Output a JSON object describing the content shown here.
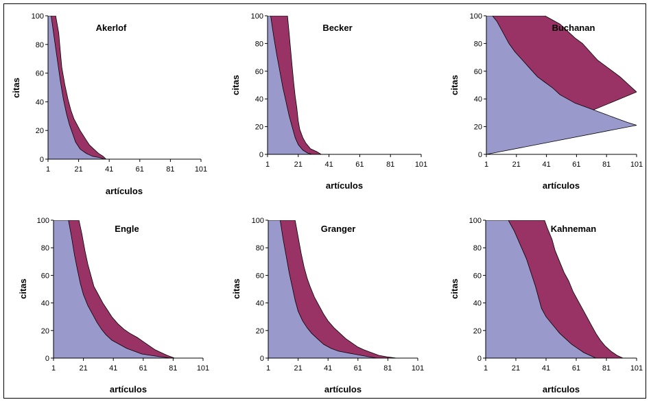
{
  "colors": {
    "lower": "#9999cc",
    "upper": "#993366",
    "edge": "#000000"
  },
  "chart_data": [
    {
      "type": "area",
      "title": "Akerlof",
      "xlabel": "artículos",
      "ylabel": "citas",
      "xlim": [
        1,
        101
      ],
      "ylim": [
        0,
        100
      ],
      "xticks": [
        "1",
        "21",
        "41",
        "61",
        "81",
        "101"
      ],
      "yticks": [
        "0",
        "20",
        "40",
        "60",
        "80",
        "100"
      ],
      "series": [
        {
          "key": "lower",
          "points": [
            [
              3,
              100
            ],
            [
              5,
              85
            ],
            [
              7,
              70
            ],
            [
              9,
              55
            ],
            [
              11,
              42
            ],
            [
              13,
              32
            ],
            [
              15,
              24
            ],
            [
              17,
              18
            ],
            [
              19,
              12
            ],
            [
              22,
              7
            ],
            [
              26,
              4
            ],
            [
              30,
              2
            ],
            [
              35,
              1
            ],
            [
              38,
              0
            ]
          ]
        },
        {
          "key": "upper",
          "points": [
            [
              6,
              100
            ],
            [
              8,
              88
            ],
            [
              9,
              76
            ],
            [
              10,
              64
            ],
            [
              12,
              52
            ],
            [
              14,
              42
            ],
            [
              16,
              34
            ],
            [
              18,
              28
            ],
            [
              20,
              24
            ],
            [
              22,
              20
            ],
            [
              25,
              15
            ],
            [
              28,
              10
            ],
            [
              31,
              7
            ],
            [
              34,
              4
            ],
            [
              37,
              2
            ],
            [
              39,
              0
            ]
          ]
        }
      ]
    },
    {
      "type": "area",
      "title": "Becker",
      "xlabel": "artículos",
      "ylabel": "citas",
      "xlim": [
        1,
        101
      ],
      "ylim": [
        0,
        100
      ],
      "xticks": [
        "1",
        "21",
        "41",
        "61",
        "81",
        "101"
      ],
      "yticks": [
        "0",
        "20",
        "40",
        "60",
        "80",
        "100"
      ],
      "series": [
        {
          "key": "lower",
          "points": [
            [
              3,
              100
            ],
            [
              5,
              85
            ],
            [
              7,
              72
            ],
            [
              9,
              60
            ],
            [
              11,
              48
            ],
            [
              13,
              38
            ],
            [
              15,
              28
            ],
            [
              17,
              20
            ],
            [
              19,
              12
            ],
            [
              21,
              7
            ],
            [
              24,
              3
            ],
            [
              27,
              1
            ],
            [
              30,
              0
            ]
          ]
        },
        {
          "key": "upper",
          "points": [
            [
              14,
              100
            ],
            [
              15,
              88
            ],
            [
              16,
              76
            ],
            [
              17,
              64
            ],
            [
              18,
              52
            ],
            [
              19,
              42
            ],
            [
              20,
              34
            ],
            [
              21,
              24
            ],
            [
              22,
              18
            ],
            [
              24,
              12
            ],
            [
              26,
              8
            ],
            [
              29,
              4
            ],
            [
              33,
              2
            ],
            [
              36,
              0
            ]
          ]
        }
      ]
    },
    {
      "type": "area",
      "title": "Buchanan",
      "xlabel": "artículos",
      "ylabel": "citas",
      "xlim": [
        1,
        101
      ],
      "ylim": [
        0,
        100
      ],
      "xticks": [
        "1",
        "21",
        "41",
        "61",
        "81",
        "101"
      ],
      "yticks": [
        "0",
        "20",
        "40",
        "60",
        "80",
        "100"
      ],
      "series": [
        {
          "key": "lower",
          "points": [
            [
              1,
              100
            ],
            [
              5,
              100
            ],
            [
              8,
              96
            ],
            [
              12,
              88
            ],
            [
              16,
              80
            ],
            [
              20,
              74
            ],
            [
              25,
              68
            ],
            [
              30,
              62
            ],
            [
              35,
              56
            ],
            [
              40,
              52
            ],
            [
              45,
              48
            ],
            [
              50,
              43
            ],
            [
              55,
              40
            ],
            [
              60,
              37
            ],
            [
              65,
              35
            ],
            [
              70,
              33
            ],
            [
              75,
              31
            ],
            [
              80,
              29
            ],
            [
              85,
              27
            ],
            [
              90,
              25
            ],
            [
              95,
              23
            ],
            [
              101,
              21
            ]
          ]
        },
        {
          "key": "upper",
          "points": [
            [
              12,
              100
            ],
            [
              20,
              100
            ],
            [
              30,
              100
            ],
            [
              40,
              100
            ],
            [
              50,
              94
            ],
            [
              60,
              84
            ],
            [
              65,
              80
            ],
            [
              70,
              74
            ],
            [
              75,
              68
            ],
            [
              80,
              64
            ],
            [
              85,
              60
            ],
            [
              90,
              56
            ],
            [
              95,
              51
            ],
            [
              101,
              45
            ]
          ]
        }
      ]
    },
    {
      "type": "area",
      "title": "Engle",
      "xlabel": "artículos",
      "ylabel": "citas",
      "xlim": [
        1,
        101
      ],
      "ylim": [
        0,
        100
      ],
      "xticks": [
        "1",
        "21",
        "41",
        "61",
        "81",
        "101"
      ],
      "yticks": [
        "0",
        "20",
        "40",
        "60",
        "80",
        "100"
      ],
      "series": [
        {
          "key": "lower",
          "points": [
            [
              11,
              100
            ],
            [
              13,
              88
            ],
            [
              15,
              75
            ],
            [
              17,
              64
            ],
            [
              19,
              54
            ],
            [
              21,
              46
            ],
            [
              24,
              38
            ],
            [
              27,
              32
            ],
            [
              30,
              26
            ],
            [
              33,
              21
            ],
            [
              36,
              17
            ],
            [
              40,
              13
            ],
            [
              45,
              10
            ],
            [
              50,
              7
            ],
            [
              55,
              5
            ],
            [
              60,
              3
            ],
            [
              66,
              2
            ],
            [
              72,
              1
            ],
            [
              80,
              0
            ]
          ]
        },
        {
          "key": "upper",
          "points": [
            [
              18,
              100
            ],
            [
              20,
              90
            ],
            [
              22,
              78
            ],
            [
              24,
              68
            ],
            [
              26,
              60
            ],
            [
              28,
              52
            ],
            [
              31,
              46
            ],
            [
              34,
              40
            ],
            [
              37,
              35
            ],
            [
              40,
              30
            ],
            [
              44,
              25
            ],
            [
              48,
              21
            ],
            [
              52,
              18
            ],
            [
              57,
              15
            ],
            [
              61,
              12
            ],
            [
              65,
              9
            ],
            [
              69,
              6
            ],
            [
              73,
              4
            ],
            [
              77,
              2
            ],
            [
              82,
              0
            ]
          ]
        }
      ]
    },
    {
      "type": "area",
      "title": "Granger",
      "xlabel": "artículos",
      "ylabel": "citas",
      "xlim": [
        1,
        101
      ],
      "ylim": [
        0,
        100
      ],
      "xticks": [
        "1",
        "21",
        "41",
        "61",
        "81",
        "101"
      ],
      "yticks": [
        "0",
        "20",
        "40",
        "60",
        "80",
        "100"
      ],
      "series": [
        {
          "key": "lower",
          "points": [
            [
              9,
              100
            ],
            [
              11,
              86
            ],
            [
              13,
              74
            ],
            [
              15,
              62
            ],
            [
              17,
              52
            ],
            [
              19,
              42
            ],
            [
              21,
              34
            ],
            [
              24,
              27
            ],
            [
              27,
              22
            ],
            [
              30,
              18
            ],
            [
              34,
              14
            ],
            [
              38,
              10
            ],
            [
              43,
              7
            ],
            [
              48,
              5
            ],
            [
              53,
              4
            ],
            [
              58,
              3
            ],
            [
              63,
              2
            ],
            [
              68,
              1
            ],
            [
              74,
              0
            ]
          ]
        },
        {
          "key": "upper",
          "points": [
            [
              19,
              100
            ],
            [
              21,
              88
            ],
            [
              23,
              76
            ],
            [
              25,
              66
            ],
            [
              27,
              58
            ],
            [
              29,
              52
            ],
            [
              32,
              44
            ],
            [
              35,
              38
            ],
            [
              38,
              32
            ],
            [
              41,
              27
            ],
            [
              45,
              22
            ],
            [
              49,
              18
            ],
            [
              53,
              14
            ],
            [
              57,
              11
            ],
            [
              61,
              8
            ],
            [
              65,
              6
            ],
            [
              70,
              4
            ],
            [
              75,
              2
            ],
            [
              80,
              1
            ],
            [
              87,
              0
            ]
          ]
        }
      ]
    },
    {
      "type": "area",
      "title": "Kahneman",
      "xlabel": "artículos",
      "ylabel": "citas",
      "xlim": [
        1,
        101
      ],
      "ylim": [
        0,
        100
      ],
      "xticks": [
        "1",
        "21",
        "41",
        "61",
        "81",
        "101"
      ],
      "yticks": [
        "0",
        "20",
        "40",
        "60",
        "80",
        "100"
      ],
      "series": [
        {
          "key": "lower",
          "points": [
            [
              1,
              100
            ],
            [
              16,
              100
            ],
            [
              20,
              92
            ],
            [
              24,
              82
            ],
            [
              28,
              72
            ],
            [
              31,
              62
            ],
            [
              34,
              52
            ],
            [
              36,
              44
            ],
            [
              38,
              36
            ],
            [
              41,
              30
            ],
            [
              44,
              26
            ],
            [
              47,
              22
            ],
            [
              50,
              18
            ],
            [
              54,
              14
            ],
            [
              58,
              10
            ],
            [
              62,
              7
            ],
            [
              66,
              4
            ],
            [
              70,
              2
            ],
            [
              74,
              0
            ]
          ]
        },
        {
          "key": "upper",
          "points": [
            [
              28,
              100
            ],
            [
              40,
              100
            ],
            [
              42,
              94
            ],
            [
              45,
              86
            ],
            [
              47,
              78
            ],
            [
              50,
              70
            ],
            [
              53,
              62
            ],
            [
              56,
              56
            ],
            [
              59,
              48
            ],
            [
              62,
              42
            ],
            [
              65,
              36
            ],
            [
              68,
              30
            ],
            [
              71,
              24
            ],
            [
              74,
              18
            ],
            [
              77,
              13
            ],
            [
              80,
              9
            ],
            [
              84,
              5
            ],
            [
              88,
              2
            ],
            [
              92,
              0
            ]
          ]
        }
      ]
    }
  ]
}
